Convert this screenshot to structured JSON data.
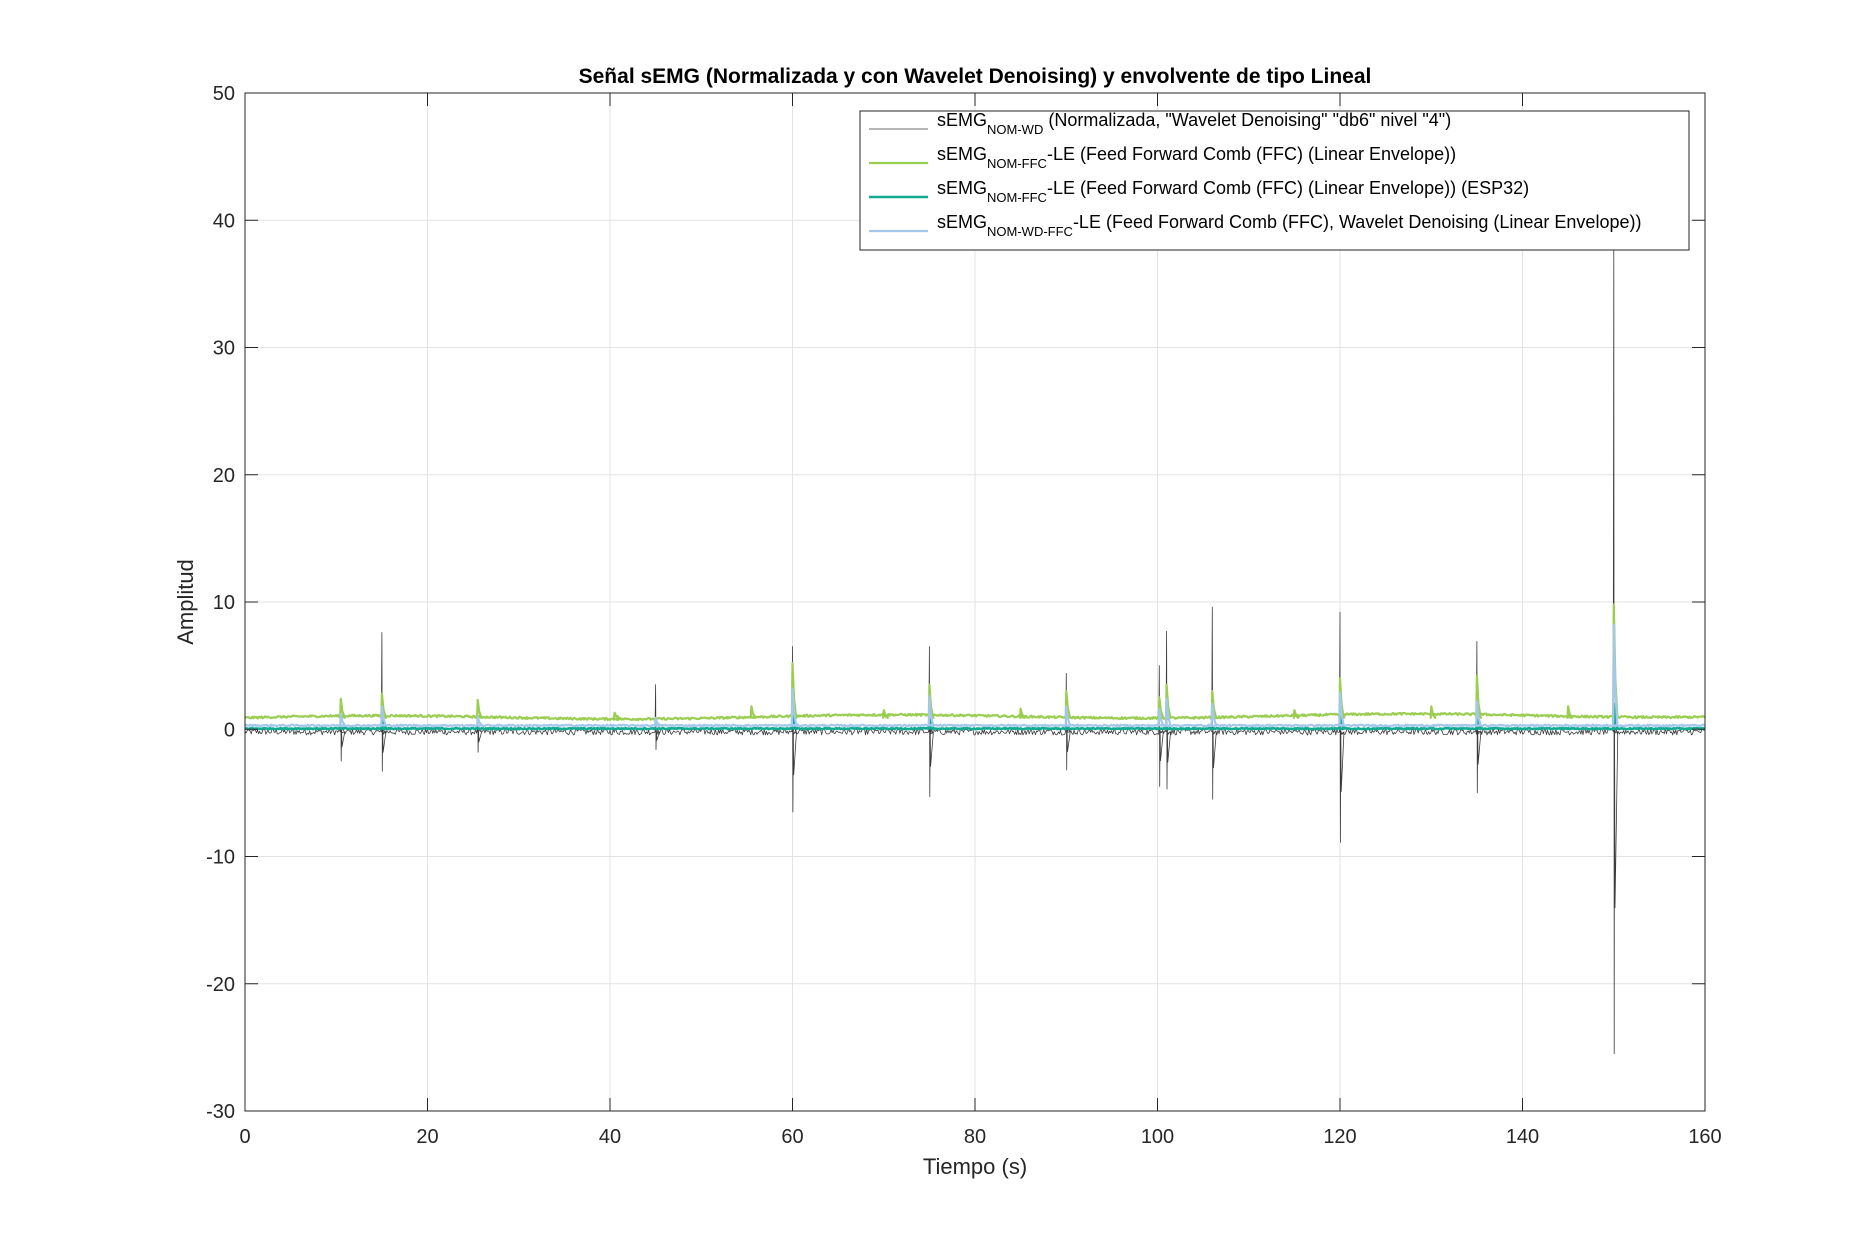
{
  "chart_data": {
    "type": "line",
    "title": "Señal sEMG (Normalizada y con Wavelet Denoising) y envolvente de tipo Lineal",
    "xlabel": "Tiempo (s)",
    "ylabel": "Amplitud",
    "xlim": [
      0,
      160
    ],
    "ylim": [
      -30,
      50
    ],
    "xticks": [
      0,
      20,
      40,
      60,
      80,
      100,
      120,
      140,
      160
    ],
    "xtick_labels": [
      "0",
      "20",
      "40",
      "60",
      "80",
      "100",
      "120",
      "140",
      "160"
    ],
    "yticks": [
      -30,
      -20,
      -10,
      0,
      10,
      20,
      30,
      40,
      50
    ],
    "ytick_labels": [
      "-30",
      "-20",
      "-10",
      "0",
      "10",
      "20",
      "30",
      "40",
      "50"
    ],
    "grid": true,
    "legend_position": "top-right",
    "series": [
      {
        "legend_main": "sEMG",
        "legend_sub": "NOM-WD",
        "legend_rest": " (Normalizada, \"Wavelet Denoising\" \"db6\" nivel \"4\")",
        "color": "#3c3c3c",
        "baseline": -0.2,
        "noise": 0.25,
        "spikes": [
          {
            "x": 10.5,
            "top": 2.0,
            "bottom": -2.5
          },
          {
            "x": 15.0,
            "top": 7.6,
            "bottom": -3.3
          },
          {
            "x": 25.5,
            "top": 1.5,
            "bottom": -1.8
          },
          {
            "x": 45.0,
            "top": 3.5,
            "bottom": -1.6
          },
          {
            "x": 60.0,
            "top": 6.5,
            "bottom": -6.5
          },
          {
            "x": 75.0,
            "top": 6.5,
            "bottom": -5.3
          },
          {
            "x": 90.0,
            "top": 4.4,
            "bottom": -3.2
          },
          {
            "x": 100.2,
            "top": 5.0,
            "bottom": -4.5
          },
          {
            "x": 101.0,
            "top": 7.7,
            "bottom": -4.7
          },
          {
            "x": 106.0,
            "top": 9.6,
            "bottom": -5.5
          },
          {
            "x": 120.0,
            "top": 9.2,
            "bottom": -8.9
          },
          {
            "x": 135.0,
            "top": 6.9,
            "bottom": -5.0
          },
          {
            "x": 150.0,
            "top": 38.0,
            "bottom": -25.5
          }
        ]
      },
      {
        "legend_main": "sEMG",
        "legend_sub": "NOM-FFC",
        "legend_rest": "-LE (Feed Forward Comb (FFC) (Linear Envelope))",
        "color": "#9acd50",
        "baseline": 0.9,
        "noise": 0.08,
        "spikes": [
          {
            "x": 10.5,
            "top": 2.4
          },
          {
            "x": 15.0,
            "top": 2.8
          },
          {
            "x": 25.5,
            "top": 2.3
          },
          {
            "x": 40.5,
            "top": 1.3
          },
          {
            "x": 55.5,
            "top": 1.8
          },
          {
            "x": 60.0,
            "top": 5.2
          },
          {
            "x": 70.0,
            "top": 1.5
          },
          {
            "x": 75.0,
            "top": 3.5
          },
          {
            "x": 85.0,
            "top": 1.6
          },
          {
            "x": 90.0,
            "top": 3.0
          },
          {
            "x": 100.2,
            "top": 2.5
          },
          {
            "x": 101.0,
            "top": 3.5
          },
          {
            "x": 106.0,
            "top": 3.0
          },
          {
            "x": 115.0,
            "top": 1.5
          },
          {
            "x": 120.0,
            "top": 4.0
          },
          {
            "x": 130.0,
            "top": 1.8
          },
          {
            "x": 135.0,
            "top": 4.2
          },
          {
            "x": 145.0,
            "top": 1.8
          },
          {
            "x": 150.0,
            "top": 9.8
          }
        ]
      },
      {
        "legend_main": "sEMG",
        "legend_sub": "NOM-FFC",
        "legend_rest": "-LE (Feed Forward Comb (FFC) (Linear Envelope)) (ESP32)",
        "color": "#12ab92",
        "baseline": 0.05,
        "noise": 0.05,
        "spikes": [
          {
            "x": 15.0,
            "top": 0.8
          },
          {
            "x": 60.0,
            "top": 1.2
          },
          {
            "x": 75.0,
            "top": 0.8
          },
          {
            "x": 120.0,
            "top": 1.0
          },
          {
            "x": 135.0,
            "top": 0.8
          },
          {
            "x": 150.0,
            "top": 2.0
          }
        ]
      },
      {
        "legend_main": "sEMG",
        "legend_sub": "NOM-WD-FFC",
        "legend_rest": "-LE (Feed Forward Comb (FFC), Wavelet Denoising (Linear Envelope))",
        "color": "#a3c8ec",
        "baseline": 0.3,
        "noise": 0.06,
        "spikes": [
          {
            "x": 10.5,
            "top": 1.2
          },
          {
            "x": 15.0,
            "top": 1.8
          },
          {
            "x": 25.5,
            "top": 1.0
          },
          {
            "x": 45.0,
            "top": 0.9
          },
          {
            "x": 60.0,
            "top": 3.2
          },
          {
            "x": 75.0,
            "top": 2.6
          },
          {
            "x": 90.0,
            "top": 1.8
          },
          {
            "x": 100.2,
            "top": 1.6
          },
          {
            "x": 101.0,
            "top": 2.4
          },
          {
            "x": 106.0,
            "top": 2.0
          },
          {
            "x": 120.0,
            "top": 2.9
          },
          {
            "x": 135.0,
            "top": 2.2
          },
          {
            "x": 150.0,
            "top": 8.2
          }
        ]
      }
    ]
  }
}
